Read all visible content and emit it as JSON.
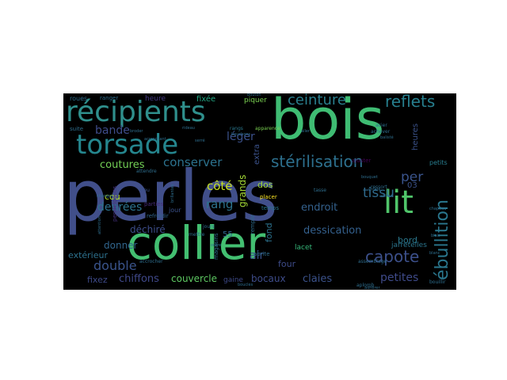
{
  "background_color": "#000000",
  "words": [
    {
      "text": "perles",
      "color": "#414f8a"
    },
    {
      "text": "bois",
      "color": "#3fbc73"
    },
    {
      "text": "collier",
      "color": "#43bf71"
    },
    {
      "text": "récipients",
      "color": "#2f8f8c"
    },
    {
      "text": "torsade",
      "color": "#25868e"
    },
    {
      "text": "lit",
      "color": "#50c46a"
    },
    {
      "text": "ceinture",
      "color": "#2a7f8e"
    },
    {
      "text": "reflets",
      "color": "#277f8e"
    },
    {
      "text": "stérilisation",
      "color": "#2d708e"
    },
    {
      "text": "conserver",
      "color": "#2c728e"
    },
    {
      "text": "ébullition",
      "color": "#2a778e"
    },
    {
      "text": "capote",
      "color": "#3c508b"
    },
    {
      "text": "tissu",
      "color": "#2f6a8d"
    },
    {
      "text": "per",
      "color": "#3a548c"
    },
    {
      "text": "léger",
      "color": "#3b518b"
    },
    {
      "text": "bande",
      "color": "#3e4c8a"
    },
    {
      "text": "coutures",
      "color": "#73d056"
    },
    {
      "text": "côté",
      "color": "#c6e021"
    },
    {
      "text": "rang",
      "color": "#2c728e"
    },
    {
      "text": "dessication",
      "color": "#34608d"
    },
    {
      "text": "endroit",
      "color": "#34618d"
    },
    {
      "text": "denrées",
      "color": "#2c738e"
    },
    {
      "text": "déchiré",
      "color": "#3d4e8a"
    },
    {
      "text": "donner",
      "color": "#31668e"
    },
    {
      "text": "double",
      "color": "#3a548c"
    },
    {
      "text": "extérieur",
      "color": "#2d718e"
    },
    {
      "text": "chiffons",
      "color": "#3f4889"
    },
    {
      "text": "fixez",
      "color": "#3e4a89"
    },
    {
      "text": "couvercle",
      "color": "#5ec962"
    },
    {
      "text": "bocaux",
      "color": "#3e4c8a"
    },
    {
      "text": "claies",
      "color": "#3b528b"
    },
    {
      "text": "petites",
      "color": "#3e4a89"
    },
    {
      "text": "bord",
      "color": "#2a788e"
    },
    {
      "text": "four",
      "color": "#3e4c8a"
    },
    {
      "text": "air",
      "color": "#3b528b"
    },
    {
      "text": "fond",
      "color": "#2c728e"
    },
    {
      "text": "dos",
      "color": "#a0da39"
    },
    {
      "text": "extra",
      "color": "#3b528b"
    },
    {
      "text": "grands",
      "color": "#a5db36"
    },
    {
      "text": "cou",
      "color": "#b5de2b"
    },
    {
      "text": "jarretelles",
      "color": "#2b758e"
    },
    {
      "text": "lacet",
      "color": "#35b779"
    },
    {
      "text": "heure",
      "color": "#443983"
    },
    {
      "text": "fixée",
      "color": "#22a884"
    },
    {
      "text": "piquer",
      "color": "#7ad151"
    },
    {
      "text": "ranger",
      "color": "#2e6e8e"
    },
    {
      "text": "roues",
      "color": "#2e6e8e"
    },
    {
      "text": "petits",
      "color": "#287d8e"
    },
    {
      "text": "heures",
      "color": "#3b528b"
    },
    {
      "text": "gaine",
      "color": "#3e4a89"
    },
    {
      "text": "pendeloques",
      "color": "#46327e"
    },
    {
      "text": "55",
      "color": "#31688e"
    },
    {
      "text": "03",
      "color": "#3b528b"
    },
    {
      "text": "jour",
      "color": "#3b528b"
    },
    {
      "text": "rangs",
      "color": "#2a788e"
    },
    {
      "text": "temps",
      "color": "#2a788e"
    },
    {
      "text": "placer",
      "color": "#fde725"
    },
    {
      "text": "suite",
      "color": "#2e6e8e"
    },
    {
      "text": "parties",
      "color": "#472d7b"
    },
    {
      "text": "refroidir",
      "color": "#32648e"
    },
    {
      "text": "magasins",
      "color": "#2e6e8e"
    },
    {
      "text": "remplir",
      "color": "#2e6e8e"
    },
    {
      "text": "bleu",
      "color": "#3b528b"
    },
    {
      "text": "abrite",
      "color": "#2e6e8e"
    },
    {
      "text": "boucles",
      "color": "#2e6e8e"
    },
    {
      "text": "mettre",
      "color": "#2e6e8e"
    },
    {
      "text": "apparence",
      "color": "#7ad151"
    },
    {
      "text": "bouillir",
      "color": "#2e6e8e"
    },
    {
      "text": "ajuster",
      "color": "#440154"
    },
    {
      "text": "acier",
      "color": "#2e6e8e"
    },
    {
      "text": "bouchons",
      "color": "#2e6e8e"
    },
    {
      "text": "changer",
      "color": "#2e6e8e"
    },
    {
      "text": "attendre",
      "color": "#2e6e8e"
    },
    {
      "text": "accrocher",
      "color": "#2e6e8e"
    },
    {
      "text": "assemblage",
      "color": "#2e6e8e"
    },
    {
      "text": "aplomb",
      "color": "#2e6e8e"
    },
    {
      "text": "ressort",
      "color": "#2e6e8e"
    },
    {
      "text": "achever",
      "color": "#2e6e8e"
    },
    {
      "text": "balisté",
      "color": "#2e6e8e"
    },
    {
      "text": "arrière",
      "color": "#2e6e8e"
    },
    {
      "text": "abimé",
      "color": "#2e6e8e"
    },
    {
      "text": "adhérer",
      "color": "#2e6e8e"
    },
    {
      "text": "biais",
      "color": "#2e6e8e"
    },
    {
      "text": "chapeau",
      "color": "#2e6e8e"
    },
    {
      "text": "tasse",
      "color": "#2e6e8e"
    },
    {
      "text": "bouton",
      "color": "#2e6e8e"
    },
    {
      "text": "rideau",
      "color": "#2e6e8e"
    },
    {
      "text": "brillantes",
      "color": "#2e6e8e"
    },
    {
      "text": "jours",
      "color": "#2e6e8e"
    },
    {
      "text": "aller",
      "color": "#2e6e8e"
    },
    {
      "text": "ordre",
      "color": "#2e6e8e"
    },
    {
      "text": "serré",
      "color": "#2e6e8e"
    },
    {
      "text": "broder",
      "color": "#2e6e8e"
    },
    {
      "text": "accrochant",
      "color": "#2e6e8e"
    },
    {
      "text": "attention",
      "color": "#2e6e8e"
    },
    {
      "text": "blanc",
      "color": "#2e6e8e"
    },
    {
      "text": "bouquet",
      "color": "#2e6e8e"
    }
  ]
}
